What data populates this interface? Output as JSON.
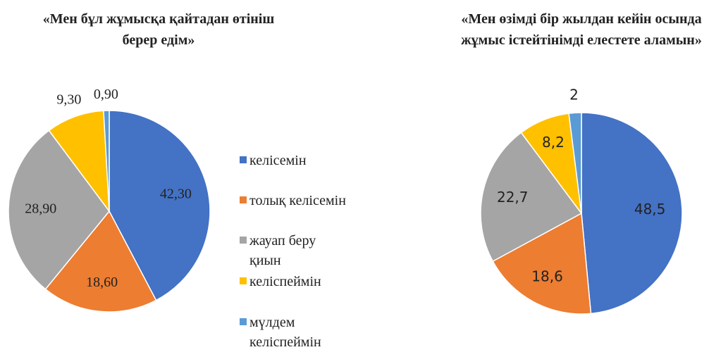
{
  "chart_data": [
    {
      "type": "pie",
      "title": "«Мен бұл жұмысқа қайтадан өтініш берер едім»",
      "categories": [
        "келісемін",
        "толық келісемін",
        "жауап беру қиын",
        "келіспеймін",
        "мүлдем келіспеймін"
      ],
      "values": [
        42.3,
        18.6,
        28.9,
        9.3,
        0.9
      ],
      "value_labels": [
        "42,30",
        "18,60",
        "28,90",
        "9,30",
        "0,90"
      ],
      "colors": [
        "#4472c4",
        "#ed7d31",
        "#a5a5a5",
        "#ffc000",
        "#5b9bd5"
      ]
    },
    {
      "type": "pie",
      "title": "«Мен өзімді бір жылдан кейін осында жұмыс істейтінімді елестете аламын»",
      "values": [
        48.5,
        18.6,
        22.7,
        8.2,
        2
      ],
      "value_labels": [
        "48,5",
        "18,6",
        "22,7",
        "8,2",
        "2"
      ],
      "colors": [
        "#4472c4",
        "#ed7d31",
        "#a5a5a5",
        "#ffc000",
        "#5b9bd5"
      ]
    }
  ]
}
